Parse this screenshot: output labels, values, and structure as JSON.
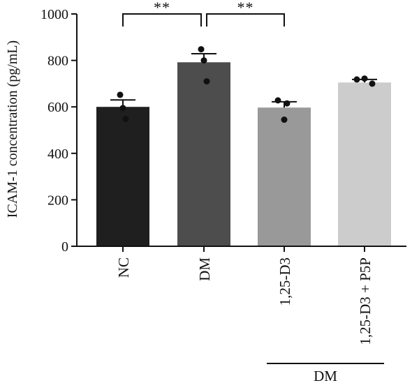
{
  "chart_data": {
    "type": "bar",
    "ylabel": "ICAM-1 concentration (pg/mL)",
    "ylim": [
      0,
      1000
    ],
    "yticks": [
      0,
      200,
      400,
      600,
      800,
      1000
    ],
    "categories": [
      "NC",
      "DM",
      "1,25-D3",
      "1,25-D3 + P5P"
    ],
    "values": [
      600,
      792,
      597,
      705
    ],
    "errors": [
      30,
      37,
      25,
      13
    ],
    "points": [
      [
        652,
        595,
        548
      ],
      [
        848,
        800,
        710
      ],
      [
        628,
        615,
        545
      ],
      [
        718,
        722,
        700
      ]
    ],
    "bar_colors": [
      "#1f1f1f",
      "#4d4d4d",
      "#999999",
      "#cccccc"
    ],
    "significance": [
      {
        "from": 0,
        "to": 1,
        "label": "**"
      },
      {
        "from": 1,
        "to": 2,
        "label": "**"
      }
    ],
    "group": {
      "label": "DM",
      "from": 2,
      "to": 3
    }
  }
}
